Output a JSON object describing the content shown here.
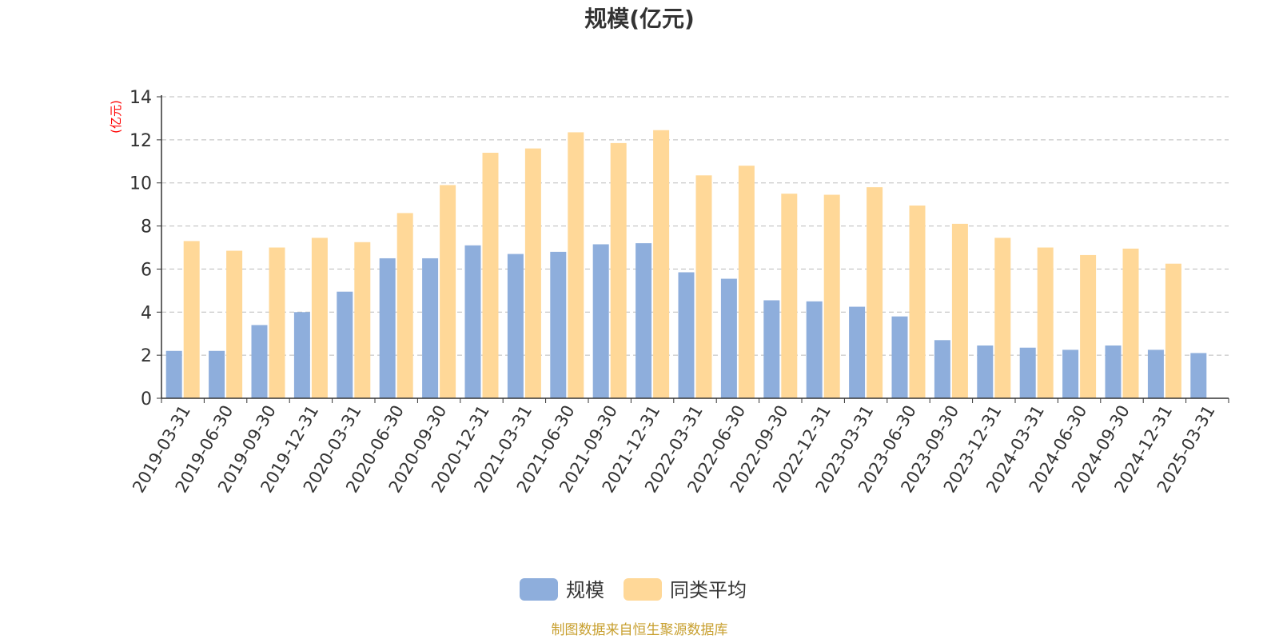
{
  "chart_data": {
    "type": "bar",
    "title": "规模(亿元)",
    "ylabel": "(亿元)",
    "xlabel": "",
    "ylim": [
      0,
      14
    ],
    "yticks": [
      0,
      2,
      4,
      6,
      8,
      10,
      12,
      14
    ],
    "grid": true,
    "legend_position": "bottom-center",
    "categories": [
      "2019-03-31",
      "2019-06-30",
      "2019-09-30",
      "2019-12-31",
      "2020-03-31",
      "2020-06-30",
      "2020-09-30",
      "2020-12-31",
      "2021-03-31",
      "2021-06-30",
      "2021-09-30",
      "2021-12-31",
      "2022-03-31",
      "2022-06-30",
      "2022-09-30",
      "2022-12-31",
      "2023-03-31",
      "2023-06-30",
      "2023-09-30",
      "2023-12-31",
      "2024-03-31",
      "2024-06-30",
      "2024-09-30",
      "2024-12-31",
      "2025-03-31"
    ],
    "series": [
      {
        "name": "规模",
        "color": "#8eaedc",
        "values": [
          2.2,
          2.2,
          3.4,
          4.0,
          4.95,
          6.5,
          6.5,
          7.1,
          6.7,
          6.8,
          7.15,
          7.2,
          5.85,
          5.55,
          4.55,
          4.5,
          4.25,
          3.8,
          2.7,
          2.45,
          2.35,
          2.25,
          2.45,
          2.25,
          2.1
        ]
      },
      {
        "name": "同类平均",
        "color": "#ffd898",
        "values": [
          7.3,
          6.85,
          7.0,
          7.45,
          7.25,
          8.6,
          9.9,
          11.4,
          11.6,
          12.35,
          11.85,
          12.45,
          10.35,
          10.8,
          9.5,
          9.45,
          9.8,
          8.95,
          8.1,
          7.45,
          7.0,
          6.65,
          6.95,
          6.25,
          null
        ]
      }
    ],
    "axis_color": "#333333",
    "grid_color": "#bbbbbb",
    "ylabel_color": "#ff0000"
  },
  "footer": {
    "source_text": "制图数据来自恒生聚源数据库",
    "source_color": "#c8a030"
  }
}
